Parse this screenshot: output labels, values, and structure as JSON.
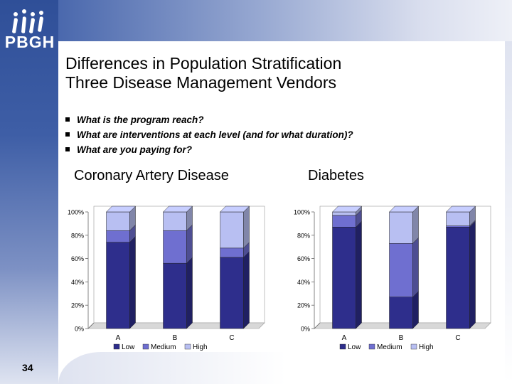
{
  "slide": {
    "logo_text": "PBGH",
    "title_line1": "Differences in Population Stratification",
    "title_line2": "Three Disease Management Vendors",
    "bullets": [
      "What is the program reach?",
      "What are interventions at each level (and for what duration)?",
      "What are you paying for?"
    ],
    "page_number": "34"
  },
  "colors": {
    "low": "#2e2e8c",
    "medium": "#6f6fd0",
    "high": "#b8bff2"
  },
  "chart_data": [
    {
      "type": "bar",
      "stacked": true,
      "title": "Coronary Artery Disease",
      "categories": [
        "A",
        "B",
        "C"
      ],
      "series": [
        {
          "name": "Low",
          "values": [
            74,
            56,
            61
          ]
        },
        {
          "name": "Medium",
          "values": [
            10,
            28,
            8
          ]
        },
        {
          "name": "High",
          "values": [
            16,
            16,
            31
          ]
        }
      ],
      "ylim": [
        0,
        100
      ],
      "ticks": [
        "0%",
        "20%",
        "40%",
        "60%",
        "80%",
        "100%"
      ],
      "legend": "bottom"
    },
    {
      "type": "bar",
      "stacked": true,
      "title": "Diabetes",
      "categories": [
        "A",
        "B",
        "C"
      ],
      "series": [
        {
          "name": "Low",
          "values": [
            87,
            27,
            87
          ]
        },
        {
          "name": "Medium",
          "values": [
            10,
            46,
            1
          ]
        },
        {
          "name": "High",
          "values": [
            3,
            27,
            12
          ]
        }
      ],
      "ylim": [
        0,
        100
      ],
      "ticks": [
        "0%",
        "20%",
        "40%",
        "60%",
        "80%",
        "100%"
      ],
      "legend": "bottom"
    }
  ]
}
